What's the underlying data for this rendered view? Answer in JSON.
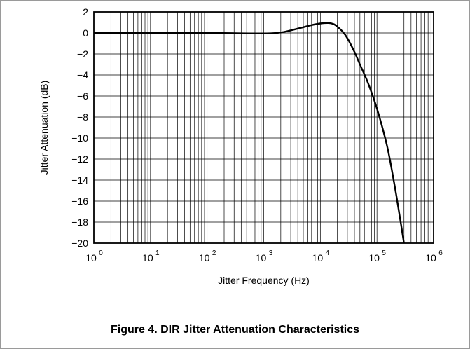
{
  "caption": "Figure 4. DIR Jitter Attenuation Characteristics",
  "chart_data": {
    "type": "line",
    "title": "",
    "xlabel": "Jitter Frequency (Hz)",
    "ylabel": "Jitter Attenuation (dB)",
    "xscale": "log",
    "xlim": [
      1,
      1000000
    ],
    "ylim": [
      -20,
      2
    ],
    "grid": true,
    "x_tick_labels": [
      {
        "base": "10",
        "exp": "0"
      },
      {
        "base": "10",
        "exp": "1"
      },
      {
        "base": "10",
        "exp": "2"
      },
      {
        "base": "10",
        "exp": "3"
      },
      {
        "base": "10",
        "exp": "4"
      },
      {
        "base": "10",
        "exp": "5"
      },
      {
        "base": "10",
        "exp": "6"
      }
    ],
    "y_ticks": [
      2,
      0,
      -2,
      -4,
      -6,
      -8,
      -10,
      -12,
      -14,
      -16,
      -18,
      -20
    ],
    "y_tick_labels": [
      "2",
      "0",
      "−2",
      "−4",
      "−6",
      "−8",
      "−10",
      "−12",
      "−14",
      "−16",
      "−18",
      "−20"
    ],
    "series": [
      {
        "x": [
          1,
          10,
          100,
          1000,
          2000,
          3000,
          5000,
          7000,
          10000,
          14000,
          17000,
          20000,
          25000,
          30000,
          40000,
          50000,
          70000,
          100000,
          150000,
          200000,
          250000,
          300000
        ],
        "y": [
          0,
          0,
          0,
          -0.05,
          0.05,
          0.25,
          0.55,
          0.75,
          0.9,
          0.95,
          0.85,
          0.6,
          0.1,
          -0.5,
          -1.8,
          -3.0,
          -4.8,
          -7.2,
          -10.7,
          -14.2,
          -17.3,
          -20
        ]
      }
    ]
  }
}
